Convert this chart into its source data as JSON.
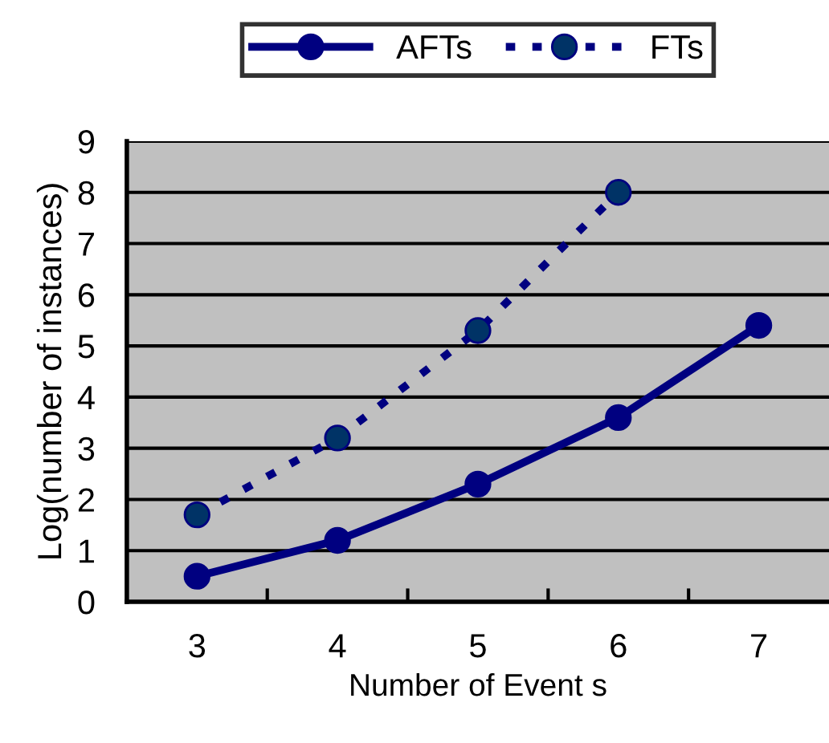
{
  "chart_data": {
    "type": "line",
    "xlabel": "Number of Event s",
    "ylabel": "Log(number of instances)",
    "categories": [
      "3",
      "4",
      "5",
      "6",
      "7"
    ],
    "series": [
      {
        "name": "AFTs",
        "color": "#000080",
        "values": [
          0.5,
          1.2,
          2.3,
          3.6,
          5.4
        ],
        "line_style": "solid"
      },
      {
        "name": "FTs",
        "color": "#000080",
        "values": [
          1.7,
          3.2,
          5.3,
          8.0,
          null
        ],
        "line_style": "dashed"
      }
    ],
    "marker": "circle",
    "ylim": [
      0,
      9
    ],
    "yticks": [
      0,
      1,
      2,
      3,
      4,
      5,
      6,
      7,
      8,
      9
    ],
    "grid": "y",
    "legend": "top"
  }
}
